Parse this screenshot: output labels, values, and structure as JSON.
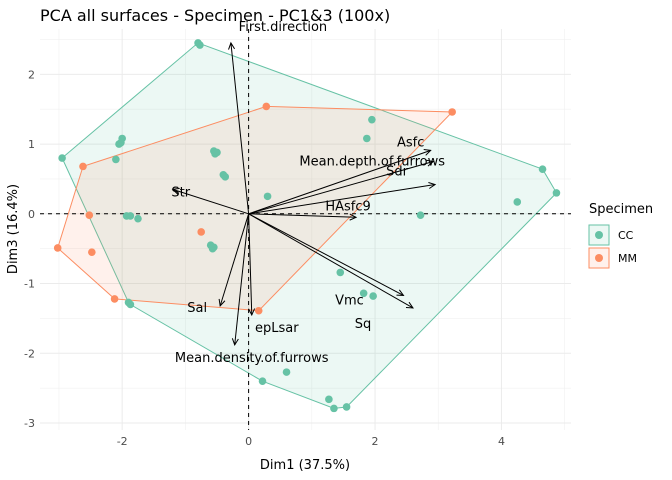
{
  "chart_data": {
    "type": "scatter",
    "title": "PCA all surfaces - Specimen - PC1&3 (100x)",
    "xlabel": "Dim1 (37.5%)",
    "ylabel": "Dim3 (16.4%)",
    "xlim": [
      -3.3,
      5.1
    ],
    "ylim": [
      -3.1,
      2.65
    ],
    "x_ticks": [
      -2,
      0,
      2,
      4
    ],
    "x_tick_labels": [
      "-2",
      "0",
      "2",
      "4"
    ],
    "y_ticks": [
      -3,
      -2,
      -1,
      0,
      1,
      2
    ],
    "y_tick_labels": [
      "-3",
      "-2",
      "-1",
      "0",
      "1",
      "2"
    ],
    "grid": true,
    "legend": {
      "title": "Specimen",
      "position": "right"
    },
    "series": [
      {
        "name": "CC",
        "color": "#66C2A5",
        "points": [
          [
            -0.8,
            2.45
          ],
          [
            -0.77,
            2.42
          ],
          [
            -2.95,
            0.8
          ],
          [
            -2.0,
            1.08
          ],
          [
            -2.02,
            1.02
          ],
          [
            -2.05,
            1.0
          ],
          [
            -2.1,
            0.78
          ],
          [
            -0.55,
            0.9
          ],
          [
            -0.53,
            0.86
          ],
          [
            -0.5,
            0.88
          ],
          [
            -0.4,
            0.56
          ],
          [
            -0.37,
            0.53
          ],
          [
            -1.93,
            -0.03
          ],
          [
            -1.87,
            -0.03
          ],
          [
            -1.75,
            -0.07
          ],
          [
            -1.9,
            -1.27
          ],
          [
            -1.87,
            -1.3
          ],
          [
            -0.6,
            -0.45
          ],
          [
            -0.57,
            -0.5
          ],
          [
            -0.55,
            -0.48
          ],
          [
            0.3,
            0.25
          ],
          [
            1.95,
            1.35
          ],
          [
            1.87,
            1.08
          ],
          [
            2.72,
            -0.02
          ],
          [
            4.65,
            0.64
          ],
          [
            4.87,
            0.3
          ],
          [
            4.25,
            0.17
          ],
          [
            1.45,
            -0.84
          ],
          [
            1.82,
            -1.14
          ],
          [
            1.97,
            -1.18
          ],
          [
            0.6,
            -2.27
          ],
          [
            0.22,
            -2.4
          ],
          [
            1.27,
            -2.66
          ],
          [
            1.35,
            -2.79
          ],
          [
            1.55,
            -2.77
          ]
        ]
      },
      {
        "name": "MM",
        "color": "#FC8D62",
        "points": [
          [
            0.28,
            1.54
          ],
          [
            3.22,
            1.46
          ],
          [
            -2.62,
            0.68
          ],
          [
            -2.52,
            -0.02
          ],
          [
            -0.75,
            -0.26
          ],
          [
            -2.48,
            -0.55
          ],
          [
            -3.02,
            -0.49
          ],
          [
            -2.12,
            -1.22
          ],
          [
            0.16,
            -1.39
          ]
        ]
      }
    ],
    "variable_arrows": [
      {
        "name": "First.direction",
        "x": -0.28,
        "y": 2.45
      },
      {
        "name": "Asfc",
        "x": 2.88,
        "y": 0.91
      },
      {
        "name": "Mean.depth.of.furrows",
        "x": 2.92,
        "y": 0.75
      },
      {
        "name": "Str",
        "x": -1.2,
        "y": 0.35
      },
      {
        "name": "HAsfc9",
        "x": 1.7,
        "y": -0.05
      },
      {
        "name": "Sdr",
        "x": 2.95,
        "y": 0.42
      },
      {
        "name": "Vmc",
        "x": 2.45,
        "y": -1.17
      },
      {
        "name": "Sq",
        "x": 2.6,
        "y": -1.35
      },
      {
        "name": "Sal",
        "x": -0.45,
        "y": -1.32
      },
      {
        "name": "epLsar",
        "x": 0.05,
        "y": -1.45
      },
      {
        "name": "Mean.density.of.furrows",
        "x": -0.22,
        "y": -1.88
      }
    ]
  }
}
